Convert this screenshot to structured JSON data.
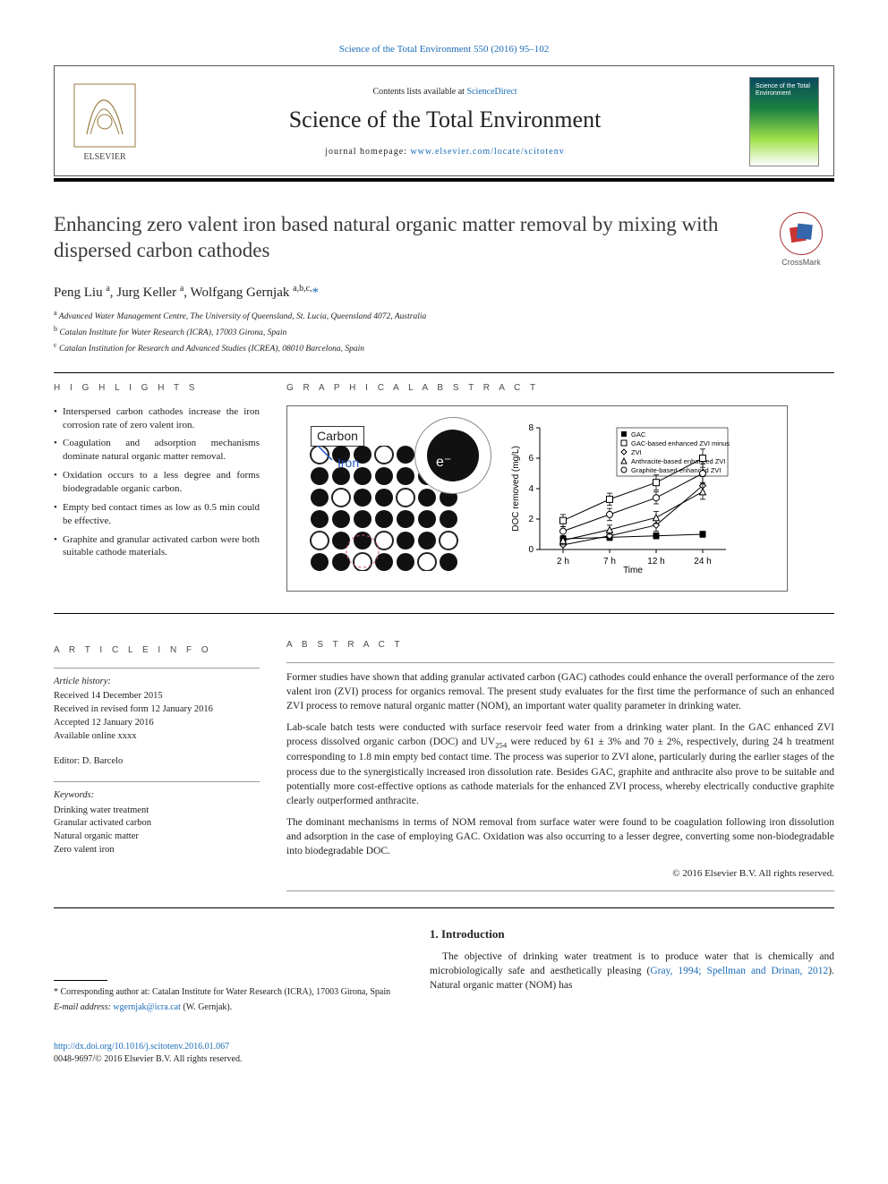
{
  "top_citation": "Science of the Total Environment 550 (2016) 95–102",
  "banner": {
    "contents_prefix": "Contents lists available at ",
    "contents_link": "ScienceDirect",
    "journal_title": "Science of the Total Environment",
    "homepage_prefix": "journal homepage: ",
    "homepage_link": "www.elsevier.com/locate/scitotenv",
    "cover_text": "Science of the Total Environment",
    "publisher_name": "ELSEVIER"
  },
  "crossmark_label": "CrossMark",
  "title": "Enhancing zero valent iron based natural organic matter removal by mixing with dispersed carbon cathodes",
  "authors_html": "Peng Liu <sup>a</sup>, Jurg Keller <sup>a</sup>, Wolfgang Gernjak <sup>a,b,c,*</sup>",
  "affiliations": [
    {
      "sup": "a",
      "text": "Advanced Water Management Centre, The University of Queensland, St. Lucia, Queensland 4072, Australia"
    },
    {
      "sup": "b",
      "text": "Catalan Institute for Water Research (ICRA), 17003 Girona, Spain"
    },
    {
      "sup": "c",
      "text": "Catalan Institution for Research and Advanced Studies (ICREA), 08010 Barcelona, Spain"
    }
  ],
  "labels": {
    "highlights": "H I G H L I G H T S",
    "graphical_abstract": "G R A P H I C A L   A B S T R A C T",
    "article_info": "A R T I C L E   I N F O",
    "abstract": "A B S T R A C T"
  },
  "highlights": [
    "Interspersed carbon cathodes increase the iron corrosion rate of zero valent iron.",
    "Coagulation and adsorption mechanisms dominate natural organic matter removal.",
    "Oxidation occurs to a less degree and forms biodegradable organic carbon.",
    "Empty bed contact times as low as 0.5 min could be effective.",
    "Graphite and granular activated carbon were both suitable cathode materials."
  ],
  "graphical_abstract": {
    "diagram": {
      "label_carbon": "Carbon",
      "label_iron": "Iron",
      "electron_label": "e⁻",
      "iron_dot_color": "#111111",
      "carbon_dot_color": "#222222",
      "iron_grid_rows": 6,
      "iron_grid_cols": 7,
      "carbon_positions": [
        [
          0,
          0
        ],
        [
          0,
          3
        ],
        [
          0,
          6
        ],
        [
          2,
          1
        ],
        [
          2,
          4
        ],
        [
          4,
          0
        ],
        [
          4,
          3
        ],
        [
          4,
          6
        ],
        [
          5,
          2
        ],
        [
          5,
          5
        ]
      ]
    },
    "chart": {
      "type": "line-with-error",
      "ylabel": "DOC removed (mg/L)",
      "xlabel": "Time",
      "categories": [
        "2 h",
        "7 h",
        "12 h",
        "24 h"
      ],
      "ylim": [
        0,
        8
      ],
      "ytick_step": 2,
      "legend": [
        "GAC",
        "GAC-based enhanced ZVI minus GAC",
        "ZVI",
        "Anthracite-based enhanced ZVI",
        "Graphite-based enhanced ZVI"
      ],
      "series": {
        "GAC": {
          "marker": "square-filled",
          "color": "#000000",
          "values": [
            0.7,
            0.8,
            0.9,
            1.0
          ],
          "err": [
            0.2,
            0.2,
            0.2,
            0.2
          ]
        },
        "GAC minus": {
          "marker": "square-open",
          "color": "#000000",
          "values": [
            1.9,
            3.3,
            4.4,
            6.0
          ],
          "err": [
            0.4,
            0.4,
            0.5,
            0.6
          ]
        },
        "ZVI": {
          "marker": "diamond",
          "color": "#000000",
          "values": [
            0.3,
            0.9,
            1.6,
            4.2
          ],
          "err": [
            0.3,
            0.3,
            0.4,
            0.6
          ]
        },
        "Anthracite": {
          "marker": "triangle",
          "color": "#000000",
          "values": [
            0.6,
            1.3,
            2.1,
            3.8
          ],
          "err": [
            0.3,
            0.3,
            0.4,
            0.5
          ]
        },
        "Graphite": {
          "marker": "circle",
          "color": "#000000",
          "values": [
            1.2,
            2.3,
            3.4,
            5.0
          ],
          "err": [
            0.3,
            0.4,
            0.4,
            0.6
          ]
        }
      },
      "axis_color": "#000000",
      "background": "#ffffff",
      "font_size_axis": 10,
      "font_size_legend": 7.5
    }
  },
  "article_info": {
    "history_heading": "Article history:",
    "history": [
      "Received 14 December 2015",
      "Received in revised form 12 January 2016",
      "Accepted 12 January 2016",
      "Available online xxxx"
    ],
    "editor_label": "Editor: ",
    "editor": "D. Barcelo",
    "keywords_heading": "Keywords:",
    "keywords": [
      "Drinking water treatment",
      "Granular activated carbon",
      "Natural organic matter",
      "Zero valent iron"
    ]
  },
  "abstract_paragraphs": [
    "Former studies have shown that adding granular activated carbon (GAC) cathodes could enhance the overall performance of the zero valent iron (ZVI) process for organics removal. The present study evaluates for the first time the performance of such an enhanced ZVI process to remove natural organic matter (NOM), an important water quality parameter in drinking water.",
    "Lab-scale batch tests were conducted with surface reservoir feed water from a drinking water plant. In the GAC enhanced ZVI process dissolved organic carbon (DOC) and UV₂₅₄ were reduced by 61 ± 3% and 70 ± 2%, respectively, during 24 h treatment corresponding to 1.8 min empty bed contact time. The process was superior to ZVI alone, particularly during the earlier stages of the process due to the synergistically increased iron dissolution rate. Besides GAC, graphite and anthracite also prove to be suitable and potentially more cost-effective options as cathode materials for the enhanced ZVI process, whereby electrically conductive graphite clearly outperformed anthracite.",
    "The dominant mechanisms in terms of NOM removal from surface water were found to be coagulation following iron dissolution and adsorption in the case of employing GAC. Oxidation was also occurring to a lesser degree, converting some non-biodegradable into biodegradable DOC."
  ],
  "abstract_copyright": "© 2016 Elsevier B.V. All rights reserved.",
  "intro": {
    "heading": "1. Introduction",
    "text_prefix": "The objective of drinking water treatment is to produce water that is chemically and microbiologically safe and aesthetically pleasing (",
    "text_link": "Gray, 1994; Spellman and Drinan, 2012",
    "text_suffix": "). Natural organic matter (NOM) has"
  },
  "corresponding": {
    "star": "*",
    "text": "Corresponding author at: Catalan Institute for Water Research (ICRA), 17003 Girona, Spain",
    "email_label": "E-mail address: ",
    "email": "wgernjak@icra.cat",
    "email_name": " (W. Gernjak)."
  },
  "footer": {
    "doi": "http://dx.doi.org/10.1016/j.scitotenv.2016.01.067",
    "issn_line": "0048-9697/© 2016 Elsevier B.V. All rights reserved."
  },
  "colors": {
    "link": "#1a6bb8",
    "text": "#222222",
    "rule": "#000000"
  }
}
